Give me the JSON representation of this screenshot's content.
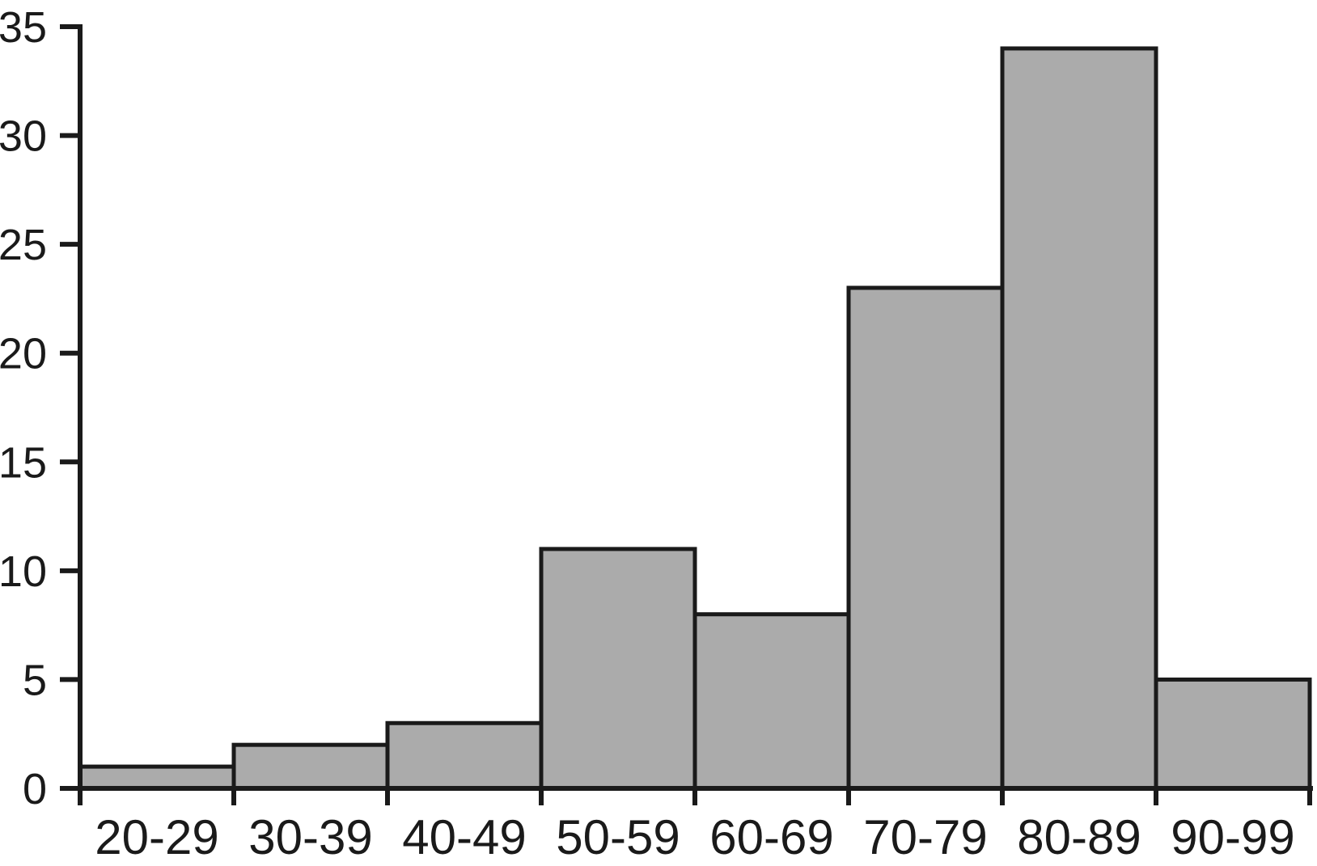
{
  "chart_data": {
    "type": "bar",
    "subtype": "histogram",
    "title": "",
    "xlabel": "",
    "ylabel": "",
    "categories": [
      "20-29",
      "30-39",
      "40-49",
      "50-59",
      "60-69",
      "70-79",
      "80-89",
      "90-99"
    ],
    "values": [
      1,
      2,
      3,
      11,
      8,
      23,
      34,
      5
    ],
    "ylim": [
      0,
      35
    ],
    "yticks": [
      0,
      5,
      10,
      15,
      20,
      25,
      30,
      35
    ],
    "grid": false,
    "legend": false,
    "bars_touching": true,
    "colors": {
      "bar_fill": "#ABABAB",
      "bar_border": "#1A1A1A",
      "axis": "#1A1A1A",
      "text": "#1A1A1A",
      "background": "#FFFFFF"
    }
  }
}
